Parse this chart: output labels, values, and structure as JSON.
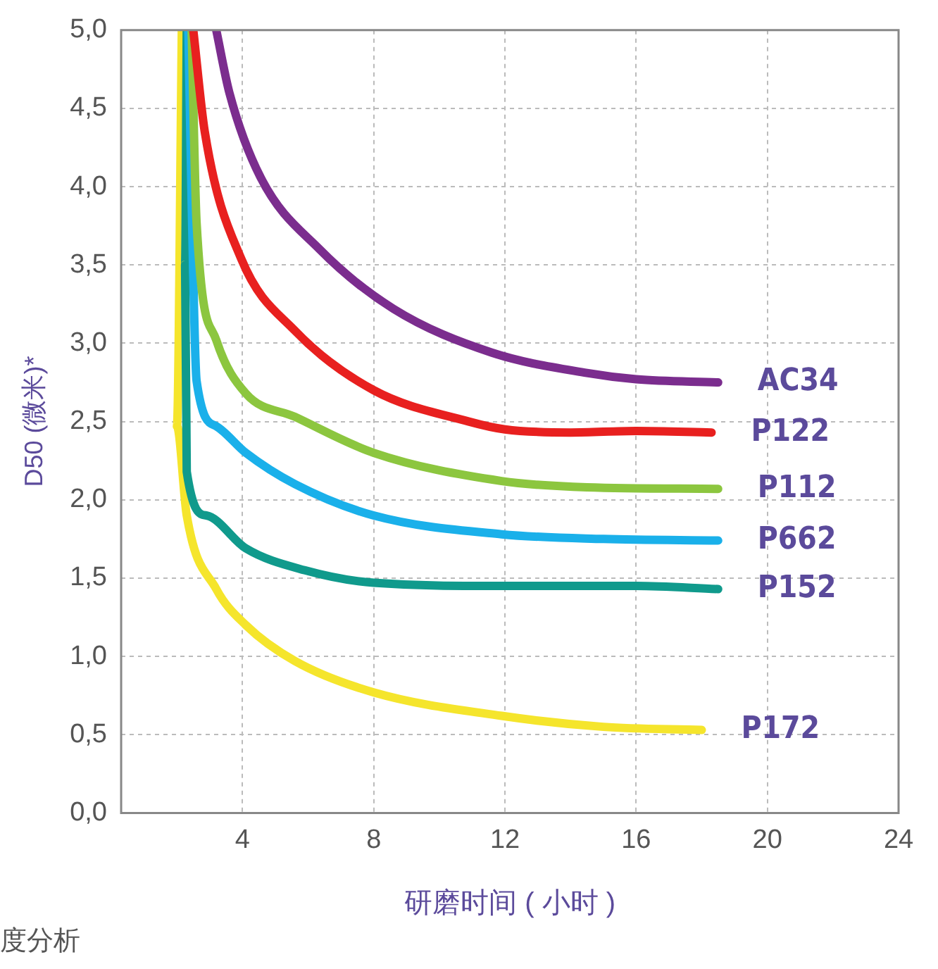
{
  "chart_data": {
    "type": "line",
    "xlabel": "研磨时间 ( 小时 )",
    "ylabel": "D50 (微米)*",
    "annotations": [
      "度分析"
    ],
    "xlim": [
      0.3,
      24
    ],
    "xticks": [
      4,
      8,
      12,
      16,
      20,
      24
    ],
    "ylim": [
      0,
      5
    ],
    "yticks": [
      {
        "value": 0,
        "label": "0,0"
      },
      {
        "value": 0.5,
        "label": "0,5"
      },
      {
        "value": 1,
        "label": "1,0"
      },
      {
        "value": 1.5,
        "label": "1,5"
      },
      {
        "value": 2,
        "label": "2,0"
      },
      {
        "value": 2.5,
        "label": "2,5"
      },
      {
        "value": 3,
        "label": "3,0"
      },
      {
        "value": 3.5,
        "label": "3,5"
      },
      {
        "value": 4,
        "label": "4,0"
      },
      {
        "value": 4.5,
        "label": "4,5"
      },
      {
        "value": 5,
        "label": "5,0"
      }
    ],
    "grid": true,
    "legend": false,
    "marker": "none",
    "line_style": "solid",
    "series": [
      {
        "name": "AC34",
        "color": "#7b2d8e",
        "x": [
          3.2,
          3.6,
          4.55,
          6.35,
          8.6,
          11.6,
          14.5,
          16,
          18.5
        ],
        "values": [
          5,
          4.6,
          4.06,
          3.6,
          3.22,
          2.94,
          2.81,
          2.77,
          2.75
        ]
      },
      {
        "name": "P122",
        "color": "#e8201f",
        "x": [
          2.5,
          2.85,
          3.96,
          5.6,
          8,
          10.9,
          12,
          14,
          16,
          18.3
        ],
        "values": [
          5,
          4.35,
          3.54,
          3.08,
          2.7,
          2.5,
          2.45,
          2.43,
          2.44,
          2.43
        ]
      },
      {
        "name": "P112",
        "color": "#8cc63f",
        "x": [
          2.45,
          2.6,
          3.2,
          4.1,
          5.6,
          8,
          11.9,
          14.5,
          18.5
        ],
        "values": [
          5,
          3.77,
          3.02,
          2.68,
          2.53,
          2.3,
          2.12,
          2.08,
          2.07
        ]
      },
      {
        "name": "P662",
        "color": "#1ab0ea",
        "x": [
          2.35,
          2.45,
          2.6,
          3.2,
          4.1,
          5.6,
          8,
          11.9,
          15,
          18.5
        ],
        "values": [
          5,
          3.9,
          2.76,
          2.47,
          2.3,
          2.1,
          1.9,
          1.78,
          1.75,
          1.74
        ]
      },
      {
        "name": "P152",
        "color": "#109a8c",
        "x": [
          2.3,
          2.25,
          2.3,
          2.9,
          4.1,
          5.9,
          8,
          11.9,
          16,
          18.5
        ],
        "values": [
          5,
          3.5,
          2.18,
          1.9,
          1.69,
          1.55,
          1.47,
          1.45,
          1.45,
          1.43
        ]
      },
      {
        "name": "P172",
        "color": "#f5e52c",
        "x": [
          2.15,
          2.0,
          2.3,
          3.2,
          4.1,
          5.6,
          8,
          11.9,
          15,
          18
        ],
        "values": [
          5,
          2.47,
          1.9,
          1.43,
          1.2,
          0.97,
          0.77,
          0.62,
          0.55,
          0.53
        ]
      }
    ]
  }
}
